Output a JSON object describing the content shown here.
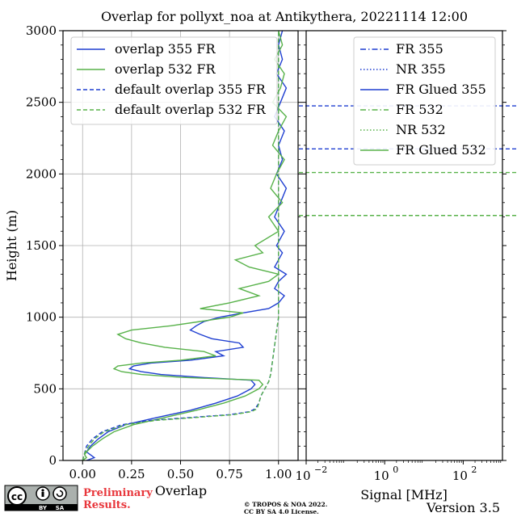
{
  "chart_data": [
    {
      "type": "line",
      "title": "Overlap for pollyxt_noa at Antikythera, 20221114 12:00",
      "xlabel": "Overlap",
      "ylabel": "Height (m)",
      "xlim": [
        -0.1,
        1.1
      ],
      "ylim": [
        0,
        3000
      ],
      "xticks": [
        "0.00",
        "0.25",
        "0.50",
        "0.75",
        "1.00"
      ],
      "xtick_values": [
        0,
        0.25,
        0.5,
        0.75,
        1.0
      ],
      "yticks": [
        "0",
        "500",
        "1000",
        "1500",
        "2000",
        "2500",
        "3000"
      ],
      "ytick_values": [
        0,
        500,
        1000,
        1500,
        2000,
        2500,
        3000
      ],
      "grid": true,
      "legend_position": "top-left",
      "series": [
        {
          "name": "overlap 355 FR",
          "color": "#1f3fd1",
          "style": "solid",
          "height": [
            0,
            20,
            40,
            60,
            100,
            150,
            200,
            250,
            300,
            350,
            400,
            450,
            500,
            530,
            560,
            580,
            600,
            620,
            640,
            660,
            680,
            700,
            730,
            760,
            790,
            820,
            850,
            880,
            910,
            940,
            970,
            1000,
            1030,
            1060,
            1100,
            1150,
            1200,
            1250,
            1300,
            1350,
            1400,
            1450,
            1500,
            1600,
            1700,
            1800,
            1900,
            2000,
            2100,
            2200,
            2300,
            2400,
            2500,
            2600,
            2700,
            2800,
            2900,
            3000
          ],
          "overlap": [
            0.02,
            0.06,
            0.04,
            0.02,
            0.04,
            0.08,
            0.13,
            0.22,
            0.38,
            0.55,
            0.68,
            0.79,
            0.86,
            0.88,
            0.86,
            0.6,
            0.4,
            0.3,
            0.24,
            0.26,
            0.35,
            0.55,
            0.72,
            0.68,
            0.82,
            0.8,
            0.66,
            0.6,
            0.55,
            0.58,
            0.62,
            0.7,
            0.82,
            0.95,
            1.0,
            1.03,
            0.98,
            1.0,
            1.04,
            0.98,
            1.0,
            1.02,
            0.99,
            1.03,
            0.98,
            1.01,
            1.04,
            0.99,
            1.02,
            1.0,
            1.03,
            0.98,
            1.01,
            1.04,
            0.99,
            1.02,
            1.0,
            1.02
          ]
        },
        {
          "name": "overlap 532 FR",
          "color": "#58b24a",
          "style": "solid",
          "height": [
            0,
            20,
            40,
            60,
            100,
            150,
            200,
            250,
            300,
            350,
            400,
            450,
            500,
            530,
            560,
            580,
            600,
            620,
            640,
            660,
            680,
            700,
            730,
            760,
            790,
            820,
            850,
            880,
            910,
            940,
            970,
            1000,
            1030,
            1060,
            1100,
            1150,
            1200,
            1250,
            1300,
            1350,
            1400,
            1450,
            1500,
            1600,
            1700,
            1800,
            1900,
            2000,
            2100,
            2200,
            2300,
            2400,
            2500,
            2600,
            2700,
            2800,
            2900,
            3000
          ],
          "overlap": [
            0.0,
            0.02,
            0.01,
            0.02,
            0.05,
            0.1,
            0.16,
            0.26,
            0.42,
            0.58,
            0.72,
            0.83,
            0.9,
            0.92,
            0.9,
            0.5,
            0.3,
            0.2,
            0.16,
            0.18,
            0.3,
            0.5,
            0.68,
            0.62,
            0.42,
            0.3,
            0.22,
            0.18,
            0.25,
            0.45,
            0.6,
            0.75,
            0.82,
            0.6,
            0.75,
            0.9,
            0.8,
            0.95,
            1.0,
            0.85,
            0.78,
            0.92,
            0.88,
            1.0,
            0.95,
            1.02,
            0.96,
            0.99,
            1.03,
            0.97,
            1.0,
            1.04,
            0.97,
            1.01,
            1.03,
            0.98,
            1.02,
            1.0
          ]
        },
        {
          "name": "default overlap 355 FR",
          "color": "#1f3fd1",
          "style": "dashed",
          "height": [
            0,
            50,
            100,
            150,
            200,
            250,
            280,
            300,
            320,
            340,
            360,
            400,
            450,
            500,
            550,
            600,
            700,
            800,
            900,
            1000,
            1100,
            1200,
            1500,
            2000,
            2500,
            3000
          ],
          "overlap": [
            0.0,
            0.01,
            0.02,
            0.05,
            0.1,
            0.2,
            0.35,
            0.55,
            0.75,
            0.85,
            0.88,
            0.9,
            0.91,
            0.93,
            0.95,
            0.96,
            0.97,
            0.98,
            0.99,
            1.0,
            1.0,
            1.0,
            1.0,
            1.0,
            1.0,
            1.0
          ]
        },
        {
          "name": "default overlap 532 FR",
          "color": "#58b24a",
          "style": "dashed",
          "height": [
            0,
            50,
            100,
            150,
            200,
            250,
            280,
            300,
            320,
            340,
            360,
            400,
            450,
            500,
            550,
            600,
            700,
            800,
            900,
            1000,
            1100,
            1200,
            1500,
            2000,
            2500,
            3000
          ],
          "overlap": [
            0.0,
            0.01,
            0.03,
            0.06,
            0.11,
            0.22,
            0.38,
            0.58,
            0.77,
            0.86,
            0.89,
            0.9,
            0.91,
            0.93,
            0.95,
            0.96,
            0.97,
            0.98,
            0.99,
            1.0,
            1.0,
            1.0,
            1.0,
            1.0,
            1.0,
            1.0
          ]
        }
      ]
    },
    {
      "type": "line",
      "xlabel": "Signal [MHz]",
      "xscale": "log",
      "xlim": [
        0.01,
        1000
      ],
      "xticks": [
        "10",
        "10",
        "10"
      ],
      "xtick_exponents": [
        "−2",
        "0",
        "2"
      ],
      "xtick_values": [
        0.01,
        1,
        100
      ],
      "ylim": [
        0,
        3000
      ],
      "legend_position": "top-right",
      "legend": [
        {
          "name": "FR 355",
          "color": "#1f3fd1",
          "style": "dashdot"
        },
        {
          "name": "NR 355",
          "color": "#1f3fd1",
          "style": "dotted"
        },
        {
          "name": "FR Glued 355",
          "color": "#1f3fd1",
          "style": "solid"
        },
        {
          "name": "FR 532",
          "color": "#58b24a",
          "style": "dashdot"
        },
        {
          "name": "NR 532",
          "color": "#58b24a",
          "style": "dotted"
        },
        {
          "name": "FR Glued 532",
          "color": "#58b24a",
          "style": "solid"
        }
      ],
      "reference_lines": [
        {
          "height": 2475,
          "color": "#1f3fd1",
          "style": "dashed"
        },
        {
          "height": 2175,
          "color": "#1f3fd1",
          "style": "dashed"
        },
        {
          "height": 2010,
          "color": "#58b24a",
          "style": "dashed"
        },
        {
          "height": 1710,
          "color": "#58b24a",
          "style": "dashed"
        }
      ]
    }
  ],
  "footer": {
    "preliminary_line1": "Preliminary",
    "preliminary_line2": "Results.",
    "copyright_line1": "© TROPOS & NOA 2022.",
    "copyright_line2": "CC BY SA 4.0 License.",
    "version": "Version 3.5",
    "license_badge_by": "BY",
    "license_badge_sa": "SA",
    "license_badge_cc": "cc"
  }
}
